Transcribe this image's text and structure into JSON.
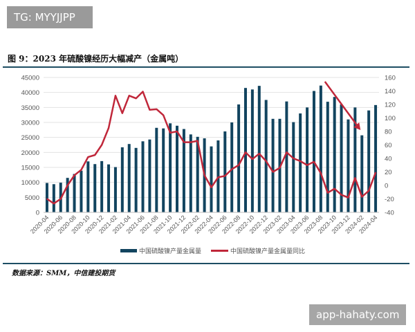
{
  "watermark_top": "TG: MYYJJPP",
  "watermark_bottom": "app-hahaty.com",
  "source": "数据来源：SMM，中信建投期货",
  "chart_data": {
    "type": "bar+line",
    "title": "图 9：2023 年硫酸镍经历大幅减产（金属吨）",
    "categories": [
      "2020-04",
      "2020-05",
      "2020-06",
      "2020-07",
      "2020-08",
      "2020-09",
      "2020-10",
      "2020-11",
      "2020-12",
      "2021-01",
      "2021-02",
      "2021-03",
      "2021-04",
      "2021-05",
      "2021-06",
      "2021-07",
      "2021-08",
      "2021-09",
      "2021-10",
      "2021-11",
      "2021-12",
      "2022-01",
      "2022-02",
      "2022-03",
      "2022-04",
      "2022-05",
      "2022-06",
      "2022-07",
      "2022-08",
      "2022-09",
      "2022-10",
      "2022-11",
      "2022-12",
      "2023-01",
      "2023-02",
      "2023-03",
      "2023-04",
      "2023-05",
      "2023-06",
      "2023-07",
      "2023-08",
      "2023-09",
      "2023-10",
      "2023-11",
      "2023-12",
      "2024-01",
      "2024-02",
      "2024-03",
      "2024-04"
    ],
    "series": [
      {
        "name": "中国硫酸镍产量金属量",
        "type": "bar",
        "axis": "left",
        "color": "#12445f",
        "values": [
          9800,
          9400,
          9900,
          11500,
          12800,
          13900,
          17000,
          16100,
          17100,
          16000,
          15100,
          21700,
          22800,
          21500,
          23700,
          24300,
          28200,
          28000,
          29700,
          28900,
          27800,
          26000,
          25200,
          24700,
          22000,
          24000,
          27000,
          30000,
          36000,
          41500,
          41000,
          42200,
          37500,
          31200,
          31200,
          37000,
          30100,
          33000,
          35000,
          40500,
          42300,
          36900,
          38500,
          36000,
          31000,
          35000,
          25700,
          34000,
          35800
        ]
      },
      {
        "name": "中国硫酸镍产量金属量同比",
        "type": "line",
        "axis": "right",
        "color": "#c0273a",
        "values": [
          -20,
          -27,
          -20,
          0,
          15,
          23,
          42,
          45,
          60,
          85,
          133,
          107,
          133,
          129,
          139,
          112,
          113,
          104,
          78,
          80,
          64,
          64,
          66,
          15,
          -3,
          12,
          14,
          24,
          30,
          49,
          39,
          47,
          36,
          20,
          26,
          49,
          40,
          36,
          30,
          35,
          18,
          -11,
          -5,
          -14,
          -18,
          11,
          -17,
          -8,
          19
        ]
      }
    ],
    "ylim_left": [
      0,
      45000
    ],
    "yticks_left": [
      0,
      5000,
      10000,
      15000,
      20000,
      25000,
      30000,
      35000,
      40000,
      45000
    ],
    "ylim_right": [
      -40,
      160
    ],
    "yticks_right": [
      -40,
      -20,
      0,
      20,
      40,
      60,
      80,
      100,
      120,
      140,
      160
    ],
    "xtick_labels": [
      "2020-04",
      "2020-06",
      "2020-08",
      "2020-10",
      "2020-12",
      "2021-02",
      "2021-04",
      "2021-06",
      "2021-08",
      "2021-10",
      "2021-12",
      "2022-02",
      "2022-04",
      "2022-06",
      "2022-08",
      "2022-10",
      "2022-12",
      "2023-02",
      "2023-04",
      "2023-06",
      "2023-08",
      "2023-10",
      "2023-12",
      "2024-02",
      "2024-04"
    ],
    "annotation": "downward arrow from 2023-09 to 2024-02",
    "grid": true,
    "legend": "bottom"
  }
}
